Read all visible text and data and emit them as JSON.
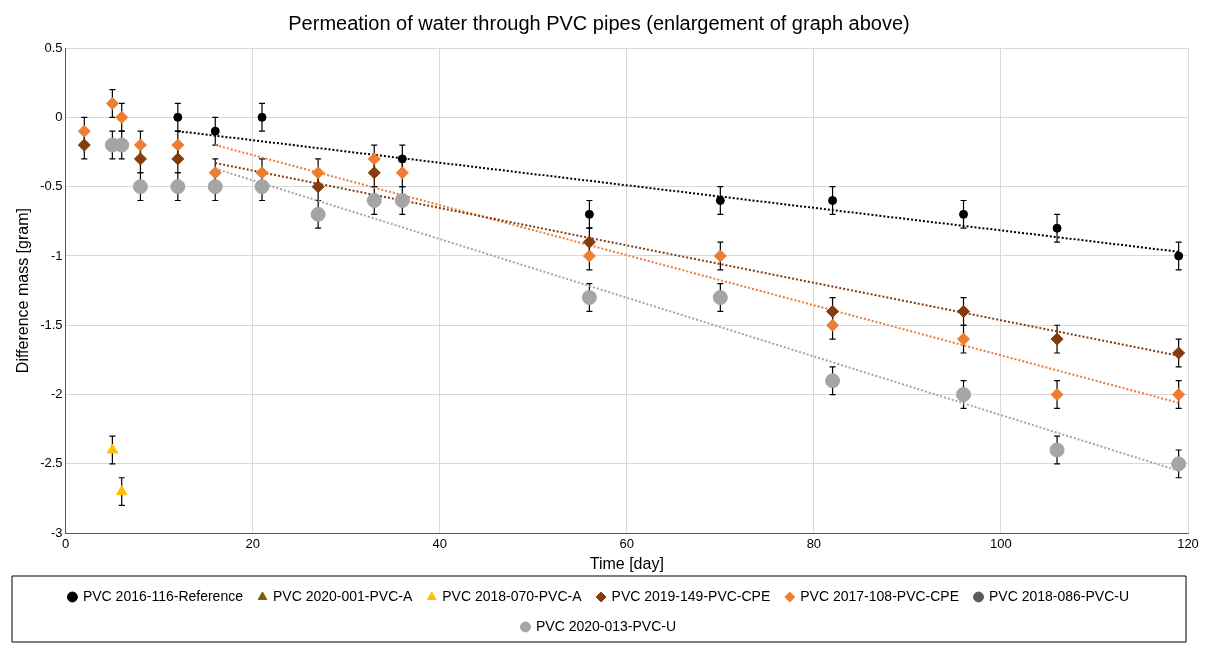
{
  "chart_data": {
    "type": "scatter",
    "title": "Permeation of water through PVC pipes (enlargement of graph above)",
    "xlabel": "Time [day]",
    "ylabel": "Difference mass [gram]",
    "xlim": [
      0,
      120
    ],
    "xticks": [
      0,
      20,
      40,
      60,
      80,
      100,
      120
    ],
    "ylim": [
      -3,
      0.5
    ],
    "yticks": [
      -3,
      -2.5,
      -2,
      -1.5,
      -1,
      -0.5,
      0,
      0.5
    ],
    "grid": true,
    "legend": "bottom",
    "series": [
      {
        "name": "PVC 2016-116-Reference",
        "color": "#000000",
        "marker": "circle",
        "x": [
          12,
          16,
          21,
          36,
          56,
          70,
          82,
          96,
          106,
          119
        ],
        "values": [
          0,
          -0.1,
          0,
          -0.3,
          -0.7,
          -0.6,
          -0.6,
          -0.7,
          -0.8,
          -1.0
        ],
        "errors": [
          0.1,
          0.1,
          0.1,
          0.1,
          0.1,
          0.1,
          0.1,
          0.1,
          0.1,
          0.1
        ]
      },
      {
        "name": "PVC 2020-001-PVC-A",
        "color": "#7f6000",
        "marker": "triangle"
      },
      {
        "name": "PVC 2018-070-PVC-A",
        "color": "#ffc000",
        "marker": "triangle",
        "x": [
          5,
          6
        ],
        "values": [
          -2.4,
          -2.7
        ],
        "errors": [
          0.1,
          0.1
        ]
      },
      {
        "name": "PVC 2019-149-PVC-CPE",
        "color": "#843c0c",
        "marker": "diamond",
        "x": [
          2,
          8,
          12,
          27,
          33,
          56,
          82,
          96,
          106,
          119
        ],
        "values": [
          -0.2,
          -0.3,
          -0.3,
          -0.5,
          -0.4,
          -0.9,
          -1.4,
          -1.4,
          -1.6,
          -1.7
        ],
        "errors": [
          0.1,
          0.1,
          0.1,
          0.1,
          0.1,
          0.1,
          0.1,
          0.1,
          0.1,
          0.1
        ]
      },
      {
        "name": "PVC 2017-108-PVC-CPE",
        "color": "#ed7d31",
        "marker": "diamond",
        "x": [
          2,
          5,
          6,
          8,
          12,
          16,
          21,
          27,
          33,
          36,
          56,
          70,
          82,
          96,
          106,
          119
        ],
        "values": [
          -0.1,
          0.1,
          0,
          -0.2,
          -0.2,
          -0.4,
          -0.4,
          -0.4,
          -0.3,
          -0.4,
          -1.0,
          -1.0,
          -1.5,
          -1.6,
          -2.0,
          -2.0
        ],
        "errors": [
          0.1,
          0.1,
          0.1,
          0.1,
          0.1,
          0.1,
          0.1,
          0.1,
          0.1,
          0.1,
          0.1,
          0.1,
          0.1,
          0.1,
          0.1,
          0.1
        ]
      },
      {
        "name": "PVC 2018-086-PVC-U",
        "color": "#595959",
        "marker": "circle"
      },
      {
        "name": "PVC 2020-013-PVC-U",
        "color": "#a5a5a5",
        "marker": "circle",
        "x": [
          5,
          6,
          8,
          12,
          16,
          21,
          27,
          33,
          36,
          56,
          70,
          82,
          96,
          106,
          119
        ],
        "values": [
          -0.2,
          -0.2,
          -0.5,
          -0.5,
          -0.5,
          -0.5,
          -0.7,
          -0.6,
          -0.6,
          -1.3,
          -1.3,
          -1.9,
          -2.0,
          -2.4,
          -2.5
        ],
        "errors": [
          0.1,
          0.1,
          0.1,
          0.1,
          0.1,
          0.1,
          0.1,
          0.1,
          0.1,
          0.1,
          0.1,
          0.1,
          0.1,
          0.1,
          0.1
        ]
      },
      {
        "type": "line",
        "color": "#000000",
        "line_style": "dotted",
        "x": [
          12,
          119
        ],
        "values": [
          -0.1,
          -0.97
        ]
      },
      {
        "type": "line",
        "color": "#843c0c",
        "line_style": "dotted",
        "x": [
          16,
          119
        ],
        "values": [
          -0.33,
          -1.72
        ]
      },
      {
        "type": "line",
        "color": "#ed7d31",
        "line_style": "dotted",
        "x": [
          16,
          119
        ],
        "values": [
          -0.2,
          -2.06
        ]
      },
      {
        "type": "line",
        "color": "#a5a5a5",
        "line_style": "dotted",
        "x": [
          16,
          119
        ],
        "values": [
          -0.37,
          -2.55
        ]
      }
    ]
  }
}
